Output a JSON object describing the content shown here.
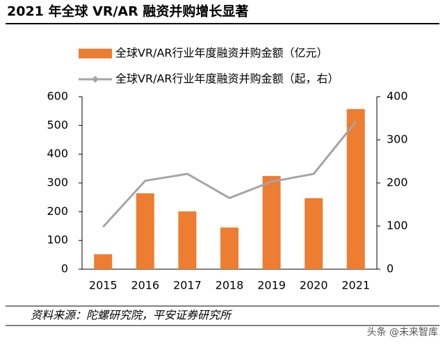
{
  "chart_data": {
    "type": "combo",
    "title": "2021 年全球 VR/AR 融资并购增长显著",
    "categories": [
      "2015",
      "2016",
      "2017",
      "2018",
      "2019",
      "2020",
      "2021"
    ],
    "series": [
      {
        "name": "全球VR/AR行业年度融资并购金额（亿元）",
        "type": "bar",
        "color": "#ed7d31",
        "values": [
          52,
          264,
          201,
          145,
          324,
          247,
          557
        ]
      },
      {
        "name": "全球VR/AR行业年度融资并购金额（起，右）",
        "type": "line",
        "axis": "y2",
        "color": "#a5a5a5",
        "values": [
          98,
          205,
          221,
          165,
          203,
          221,
          342
        ]
      }
    ],
    "ylim": [
      0,
      600
    ],
    "yticks": [
      0,
      100,
      200,
      300,
      400,
      500,
      600
    ],
    "y2lim": [
      0,
      400
    ],
    "y2ticks": [
      0,
      100,
      200,
      300,
      400
    ],
    "source": "资料来源：陀螺研究院，平安证券研究所",
    "watermark": "头条 @未来智库"
  }
}
